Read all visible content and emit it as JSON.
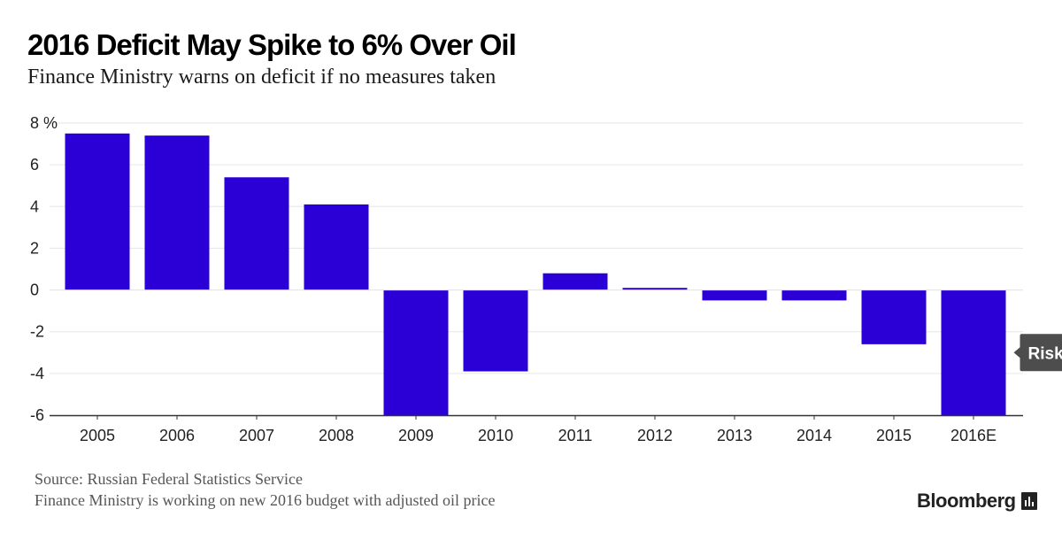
{
  "header": {
    "title": "2016 Deficit May Spike to 6% Over Oil",
    "subtitle": "Finance Ministry warns on deficit if no measures taken"
  },
  "footer": {
    "source": "Source: Russian Federal Statistics Service",
    "note": "Finance Ministry is working on new 2016 budget with adjusted oil price",
    "brand": "Bloomberg"
  },
  "colors": {
    "bar": "#2a00d6",
    "grid": "#e6e6e6",
    "axis": "#333333",
    "annotation_bg": "#4d4d4d"
  },
  "chart_data": {
    "type": "bar",
    "title": "2016 Deficit May Spike to 6% Over Oil",
    "xlabel": "",
    "ylabel": "%",
    "ylim": [
      -6,
      8
    ],
    "yticks": [
      -6,
      -4,
      -2,
      0,
      2,
      4,
      6,
      8
    ],
    "ytick_labels": [
      "-6",
      "-4",
      "-2",
      "0",
      "2",
      "4",
      "6",
      "8 %"
    ],
    "categories": [
      "2005",
      "2006",
      "2007",
      "2008",
      "2009",
      "2010",
      "2011",
      "2012",
      "2013",
      "2014",
      "2015",
      "2016E"
    ],
    "values": [
      7.5,
      7.4,
      5.4,
      4.1,
      -6.0,
      -3.9,
      0.8,
      0.1,
      -0.5,
      -0.5,
      -2.6,
      -6.0
    ],
    "annotation": {
      "text": "Risk",
      "category": "2016E",
      "value": -3.0
    },
    "grid": true
  }
}
